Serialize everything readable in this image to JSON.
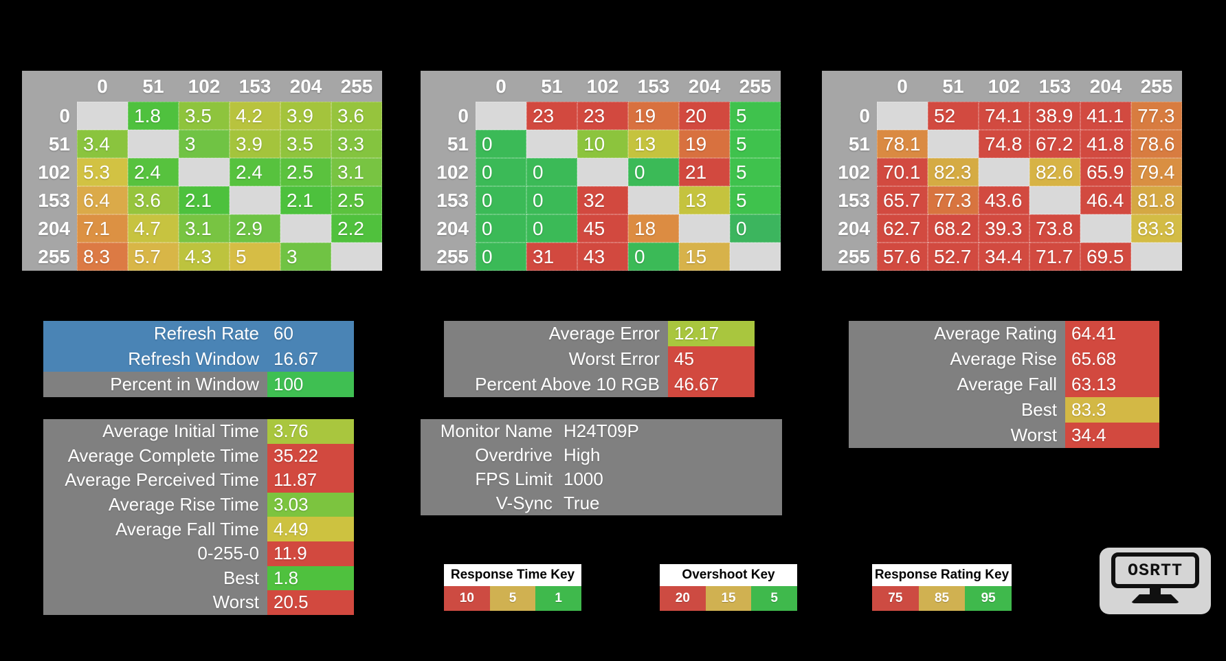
{
  "colors": {
    "background": "#000000",
    "table_frame": "#a6a6a6",
    "diagonal": "#d9d9d9",
    "panel_gray": "#808080",
    "accent_blue": "#4a84b5",
    "key_red": "#cd4b42",
    "key_tan": "#d0b151",
    "key_green": "#3fb94c"
  },
  "chart_data": [
    {
      "id": "response-times",
      "type": "heatmap",
      "x_labels": [
        "0",
        "51",
        "102",
        "153",
        "204",
        "255"
      ],
      "y_labels": [
        "0",
        "51",
        "102",
        "153",
        "204",
        "255"
      ],
      "cells": [
        [
          null,
          {
            "v": "1.8",
            "c": "#4fc13e"
          },
          {
            "v": "3.5",
            "c": "#8ec43d"
          },
          {
            "v": "4.2",
            "c": "#b8c33e"
          },
          {
            "v": "3.9",
            "c": "#a4c43c"
          },
          {
            "v": "3.6",
            "c": "#96c43d"
          }
        ],
        [
          {
            "v": "3.4",
            "c": "#8ac43e"
          },
          null,
          {
            "v": "3",
            "c": "#70c344"
          },
          {
            "v": "3.9",
            "c": "#a4c43c"
          },
          {
            "v": "3.5",
            "c": "#90c43d"
          },
          {
            "v": "3.3",
            "c": "#84c43f"
          }
        ],
        [
          {
            "v": "5.3",
            "c": "#d2c243"
          },
          {
            "v": "2.4",
            "c": "#57c23e"
          },
          null,
          {
            "v": "2.4",
            "c": "#57c23e"
          },
          {
            "v": "2.5",
            "c": "#5bc23e"
          },
          {
            "v": "3.1",
            "c": "#78c442"
          }
        ],
        [
          {
            "v": "6.4",
            "c": "#dbaa49"
          },
          {
            "v": "3.6",
            "c": "#96c43d"
          },
          {
            "v": "2.1",
            "c": "#4dc13d"
          },
          null,
          {
            "v": "2.1",
            "c": "#4dc13d"
          },
          {
            "v": "2.5",
            "c": "#5bc23e"
          }
        ],
        [
          {
            "v": "7.1",
            "c": "#dc9143"
          },
          {
            "v": "4.7",
            "c": "#c7c340"
          },
          {
            "v": "3.1",
            "c": "#78c442"
          },
          {
            "v": "2.9",
            "c": "#6dc344"
          },
          null,
          {
            "v": "2.2",
            "c": "#50c13d"
          }
        ],
        [
          {
            "v": "8.3",
            "c": "#dc7a44"
          },
          {
            "v": "5.7",
            "c": "#d8b647"
          },
          {
            "v": "4.3",
            "c": "#bdc33e"
          },
          {
            "v": "5",
            "c": "#d6bd45"
          },
          {
            "v": "3",
            "c": "#70c344"
          },
          null
        ]
      ]
    },
    {
      "id": "overshoot",
      "type": "heatmap",
      "x_labels": [
        "0",
        "51",
        "102",
        "153",
        "204",
        "255"
      ],
      "y_labels": [
        "0",
        "51",
        "102",
        "153",
        "204",
        "255"
      ],
      "cells": [
        [
          null,
          {
            "v": "23",
            "c": "#d2493f"
          },
          {
            "v": "23",
            "c": "#d2493f"
          },
          {
            "v": "19",
            "c": "#d8713f"
          },
          {
            "v": "20",
            "c": "#d2493f"
          },
          {
            "v": "5",
            "c": "#3fc24d"
          }
        ],
        [
          {
            "v": "0",
            "c": "#3bba57"
          },
          null,
          {
            "v": "10",
            "c": "#8cc43d"
          },
          {
            "v": "13",
            "c": "#c5c33e"
          },
          {
            "v": "19",
            "c": "#d8713f"
          },
          {
            "v": "5",
            "c": "#3fc24d"
          }
        ],
        [
          {
            "v": "0",
            "c": "#3bba57"
          },
          {
            "v": "0",
            "c": "#3bba57"
          },
          null,
          {
            "v": "0",
            "c": "#3bba57"
          },
          {
            "v": "21",
            "c": "#d2493f"
          },
          {
            "v": "5",
            "c": "#3fc24d"
          }
        ],
        [
          {
            "v": "0",
            "c": "#3bba57"
          },
          {
            "v": "0",
            "c": "#3bba57"
          },
          {
            "v": "32",
            "c": "#d2493f"
          },
          null,
          {
            "v": "13",
            "c": "#c5c33e"
          },
          {
            "v": "5",
            "c": "#3fc24d"
          }
        ],
        [
          {
            "v": "0",
            "c": "#3bba57"
          },
          {
            "v": "0",
            "c": "#3bba57"
          },
          {
            "v": "45",
            "c": "#d2493f"
          },
          {
            "v": "18",
            "c": "#dc8c42"
          },
          null,
          {
            "v": "0",
            "c": "#3cb55e"
          }
        ],
        [
          {
            "v": "0",
            "c": "#3bba57"
          },
          {
            "v": "31",
            "c": "#d2493f"
          },
          {
            "v": "43",
            "c": "#d2493f"
          },
          {
            "v": "0",
            "c": "#3bba57"
          },
          {
            "v": "15",
            "c": "#d7b24a"
          },
          null
        ]
      ]
    },
    {
      "id": "response-rating",
      "type": "heatmap",
      "x_labels": [
        "0",
        "51",
        "102",
        "153",
        "204",
        "255"
      ],
      "y_labels": [
        "0",
        "51",
        "102",
        "153",
        "204",
        "255"
      ],
      "cells": [
        [
          null,
          {
            "v": "52",
            "c": "#d24a40"
          },
          {
            "v": "74.1",
            "c": "#d24a40"
          },
          {
            "v": "38.9",
            "c": "#d24a40"
          },
          {
            "v": "41.1",
            "c": "#d24a40"
          },
          {
            "v": "77.3",
            "c": "#d87c40"
          }
        ],
        [
          {
            "v": "78.1",
            "c": "#da8a42"
          },
          null,
          {
            "v": "74.8",
            "c": "#d24a40"
          },
          {
            "v": "67.2",
            "c": "#d24a40"
          },
          {
            "v": "41.8",
            "c": "#d24a40"
          },
          {
            "v": "78.6",
            "c": "#d87c40"
          }
        ],
        [
          {
            "v": "70.1",
            "c": "#d24a40"
          },
          {
            "v": "82.3",
            "c": "#d5ab43"
          },
          null,
          {
            "v": "82.6",
            "c": "#d7b345"
          },
          {
            "v": "65.9",
            "c": "#d24a40"
          },
          {
            "v": "79.4",
            "c": "#d98f42"
          }
        ],
        [
          {
            "v": "65.7",
            "c": "#d24a40"
          },
          {
            "v": "77.3",
            "c": "#d8743f"
          },
          {
            "v": "43.6",
            "c": "#d24a40"
          },
          null,
          {
            "v": "46.4",
            "c": "#d24a40"
          },
          {
            "v": "81.8",
            "c": "#d5a843"
          }
        ],
        [
          {
            "v": "62.7",
            "c": "#d24a40"
          },
          {
            "v": "68.2",
            "c": "#d24a40"
          },
          {
            "v": "39.3",
            "c": "#d24a40"
          },
          {
            "v": "73.8",
            "c": "#d24a40"
          },
          null,
          {
            "v": "83.3",
            "c": "#d3bc45"
          }
        ],
        [
          {
            "v": "57.6",
            "c": "#d24a40"
          },
          {
            "v": "52.7",
            "c": "#d24a40"
          },
          {
            "v": "34.4",
            "c": "#d24a40"
          },
          {
            "v": "71.7",
            "c": "#d24a40"
          },
          {
            "v": "69.5",
            "c": "#d24a40"
          },
          null
        ]
      ]
    }
  ],
  "panels": {
    "refresh": {
      "rows": [
        {
          "label": "Refresh Rate",
          "value": "60",
          "label_bg": "#4a84b5",
          "value_bg": "#4a84b5"
        },
        {
          "label": "Refresh Window",
          "value": "16.67",
          "label_bg": "#4a84b5",
          "value_bg": "#4a84b5"
        },
        {
          "label": "Percent in Window",
          "value": "100",
          "label_bg": "#808080",
          "value_bg": "#3fbf52"
        }
      ]
    },
    "error": {
      "rows": [
        {
          "label": "Average Error",
          "value": "12.17",
          "label_bg": "#808080",
          "value_bg": "#a9c63e"
        },
        {
          "label": "Worst Error",
          "value": "45",
          "label_bg": "#808080",
          "value_bg": "#d2493f"
        },
        {
          "label": "Percent Above 10 RGB",
          "value": "46.67",
          "label_bg": "#808080",
          "value_bg": "#d2493f"
        }
      ]
    },
    "rating": {
      "rows": [
        {
          "label": "Average Rating",
          "value": "64.41",
          "label_bg": "#808080",
          "value_bg": "#d2493f"
        },
        {
          "label": "Average Rise",
          "value": "65.68",
          "label_bg": "#808080",
          "value_bg": "#d2493f"
        },
        {
          "label": "Average Fall",
          "value": "63.13",
          "label_bg": "#808080",
          "value_bg": "#d2493f"
        },
        {
          "label": "Best",
          "value": "83.3",
          "label_bg": "#808080",
          "value_bg": "#d3b845"
        },
        {
          "label": "Worst",
          "value": "34.4",
          "label_bg": "#808080",
          "value_bg": "#d2493f"
        }
      ]
    },
    "times": {
      "rows": [
        {
          "label": "Average Initial Time",
          "value": "3.76",
          "label_bg": "#808080",
          "value_bg": "#a9c63e"
        },
        {
          "label": "Average Complete Time",
          "value": "35.22",
          "label_bg": "#808080",
          "value_bg": "#d2493f"
        },
        {
          "label": "Average Perceived Time",
          "value": "11.87",
          "label_bg": "#808080",
          "value_bg": "#d2493f"
        },
        {
          "label": "Average Rise Time",
          "value": "3.03",
          "label_bg": "#808080",
          "value_bg": "#7cc43f"
        },
        {
          "label": "Average Fall Time",
          "value": "4.49",
          "label_bg": "#808080",
          "value_bg": "#cdc240"
        },
        {
          "label": "0-255-0",
          "value": "11.9",
          "label_bg": "#808080",
          "value_bg": "#d2493f"
        },
        {
          "label": "Best",
          "value": "1.8",
          "label_bg": "#808080",
          "value_bg": "#4fc13e"
        },
        {
          "label": "Worst",
          "value": "20.5",
          "label_bg": "#808080",
          "value_bg": "#d2493f"
        }
      ]
    },
    "monitor": {
      "rows": [
        {
          "label": "Monitor Name",
          "value": "H24T09P"
        },
        {
          "label": "Overdrive",
          "value": "High"
        },
        {
          "label": "FPS Limit",
          "value": "1000"
        },
        {
          "label": "V-Sync",
          "value": "True"
        }
      ]
    }
  },
  "keys": [
    {
      "id": "response-time-key",
      "title": "Response Time Key",
      "cells": [
        {
          "v": "10",
          "c": "#cd4b42"
        },
        {
          "v": "5",
          "c": "#d0b151"
        },
        {
          "v": "1",
          "c": "#3fb94c"
        }
      ]
    },
    {
      "id": "overshoot-key",
      "title": "Overshoot Key",
      "cells": [
        {
          "v": "20",
          "c": "#cd4b42"
        },
        {
          "v": "15",
          "c": "#d0b151"
        },
        {
          "v": "5",
          "c": "#3fb94c"
        }
      ]
    },
    {
      "id": "response-rating-key",
      "title": "Response Rating Key",
      "cells": [
        {
          "v": "75",
          "c": "#cd4b42"
        },
        {
          "v": "85",
          "c": "#d0b151"
        },
        {
          "v": "95",
          "c": "#3fb94c"
        }
      ]
    }
  ],
  "logo": {
    "text": "OSRTT"
  }
}
